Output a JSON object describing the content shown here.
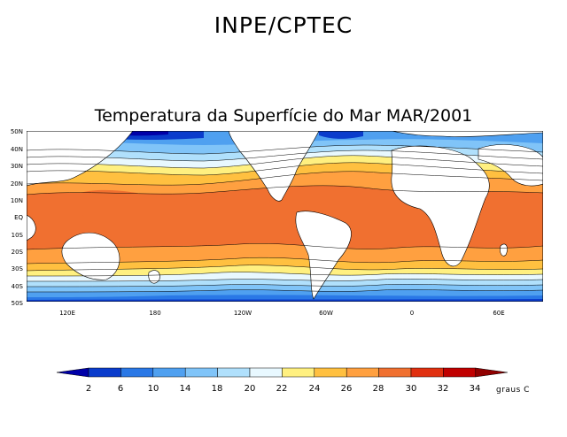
{
  "header": {
    "agency": "INPE/CPTEC"
  },
  "map": {
    "title": "Temperatura da Superfície do Mar MAR/2001",
    "lat_labels": [
      "50N",
      "40N",
      "30N",
      "20N",
      "10N",
      "EQ",
      "10S",
      "20S",
      "30S",
      "40S",
      "50S"
    ],
    "lon_labels": [
      "120E",
      "180",
      "120W",
      "60W",
      "0",
      "60E"
    ]
  },
  "colorbar": {
    "levels": [
      "2",
      "6",
      "10",
      "14",
      "18",
      "20",
      "22",
      "24",
      "26",
      "28",
      "30",
      "32",
      "34"
    ],
    "units": "graus C",
    "colors": [
      "#0000a8",
      "#0a3ccc",
      "#2a78e6",
      "#4fa0f0",
      "#80c4f8",
      "#b0e0fc",
      "#e8f8ff",
      "#fff080",
      "#ffc040",
      "#ffa040",
      "#f07030",
      "#e03010",
      "#c00000",
      "#900000"
    ]
  }
}
